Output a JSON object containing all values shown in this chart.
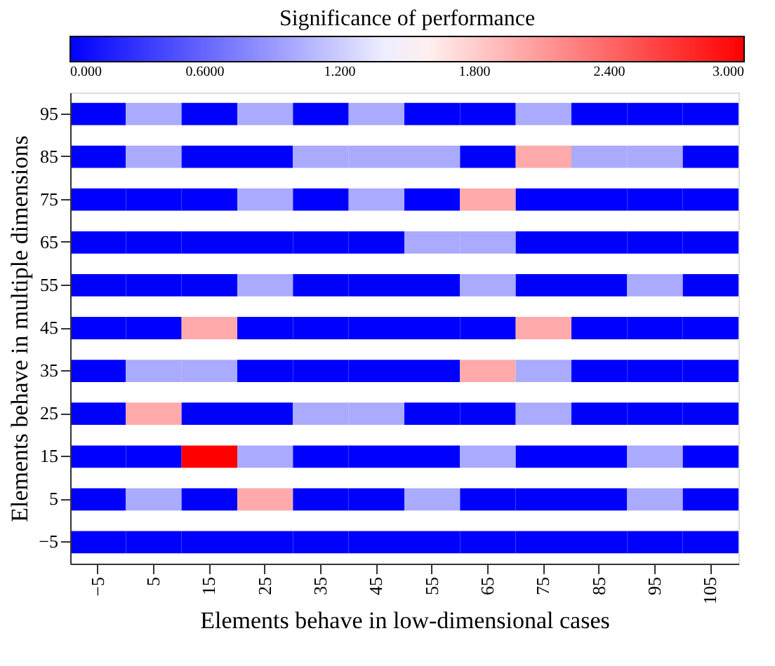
{
  "chart_data": {
    "type": "heatmap",
    "xlabel": "Elements behave in low-dimensional cases",
    "ylabel": "Elements behave in multiple dimensions",
    "clabel": "Significance of performance",
    "categories": [
      "−5",
      "5",
      "15",
      "25",
      "35",
      "45",
      "55",
      "65",
      "75",
      "85",
      "95",
      "105"
    ],
    "y_categories": [
      "95",
      "85",
      "75",
      "65",
      "55",
      "45",
      "35",
      "25",
      "15",
      "5",
      "−5"
    ],
    "cells": [
      [
        0,
        1,
        0,
        1,
        0,
        1,
        0,
        0,
        1,
        0,
        0,
        0
      ],
      [
        0,
        1,
        0,
        0,
        1,
        1,
        1,
        0,
        2,
        1,
        1,
        0
      ],
      [
        0,
        0,
        0,
        1,
        0,
        1,
        0,
        2,
        0,
        0,
        0,
        0
      ],
      [
        0,
        0,
        0,
        0,
        0,
        0,
        1,
        1,
        0,
        0,
        0,
        0
      ],
      [
        0,
        0,
        0,
        1,
        0,
        0,
        0,
        1,
        0,
        0,
        1,
        0
      ],
      [
        0,
        0,
        2,
        0,
        0,
        0,
        0,
        0,
        2,
        0,
        0,
        0
      ],
      [
        0,
        1,
        1,
        0,
        0,
        0,
        0,
        2,
        1,
        0,
        0,
        0
      ],
      [
        0,
        2,
        0,
        0,
        1,
        1,
        0,
        0,
        1,
        0,
        0,
        0
      ],
      [
        0,
        0,
        3,
        1,
        0,
        0,
        0,
        1,
        0,
        0,
        1,
        0
      ],
      [
        0,
        1,
        0,
        2,
        0,
        0,
        1,
        0,
        0,
        0,
        1,
        0
      ],
      [
        0,
        0,
        0,
        0,
        0,
        0,
        0,
        0,
        0,
        0,
        0,
        0
      ]
    ],
    "clim": [
      0,
      3
    ],
    "colors": [
      "#0000ff",
      "#ffffff",
      "#ff0000"
    ],
    "cticks": [
      {
        "value": 0,
        "label": "0.000"
      },
      {
        "value": 0.6,
        "label": "0.6000"
      },
      {
        "value": 1.2,
        "label": "1.200"
      },
      {
        "value": 1.8,
        "label": "1.800"
      },
      {
        "value": 2.4,
        "label": "2.400"
      },
      {
        "value": 3,
        "label": "3.000"
      }
    ],
    "grid": false
  }
}
